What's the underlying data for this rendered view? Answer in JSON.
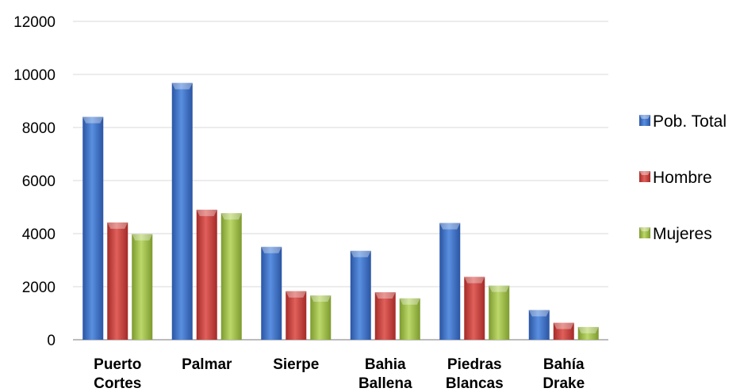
{
  "chart_data": {
    "type": "bar",
    "categories": [
      [
        "Puerto",
        "Cortes"
      ],
      [
        "Palmar"
      ],
      [
        "Sierpe"
      ],
      [
        "Bahia",
        "Ballena"
      ],
      [
        "Piedras",
        "Blancas"
      ],
      [
        "Bahía",
        "Drake"
      ]
    ],
    "series": [
      {
        "name": "Pob. Total",
        "color": "#3a6fc8",
        "values": [
          8400,
          9680,
          3500,
          3350,
          4400,
          1120
        ]
      },
      {
        "name": "Hombre",
        "color": "#cc3a36",
        "values": [
          4420,
          4900,
          1830,
          1790,
          2370,
          640
        ]
      },
      {
        "name": "Mujeres",
        "color": "#9dbd45",
        "values": [
          3980,
          4770,
          1670,
          1560,
          2040,
          480
        ]
      }
    ],
    "ylim": [
      0,
      12000
    ],
    "yticks": [
      0,
      2000,
      4000,
      6000,
      8000,
      10000,
      12000
    ],
    "grid": true,
    "legend_position": "right"
  }
}
